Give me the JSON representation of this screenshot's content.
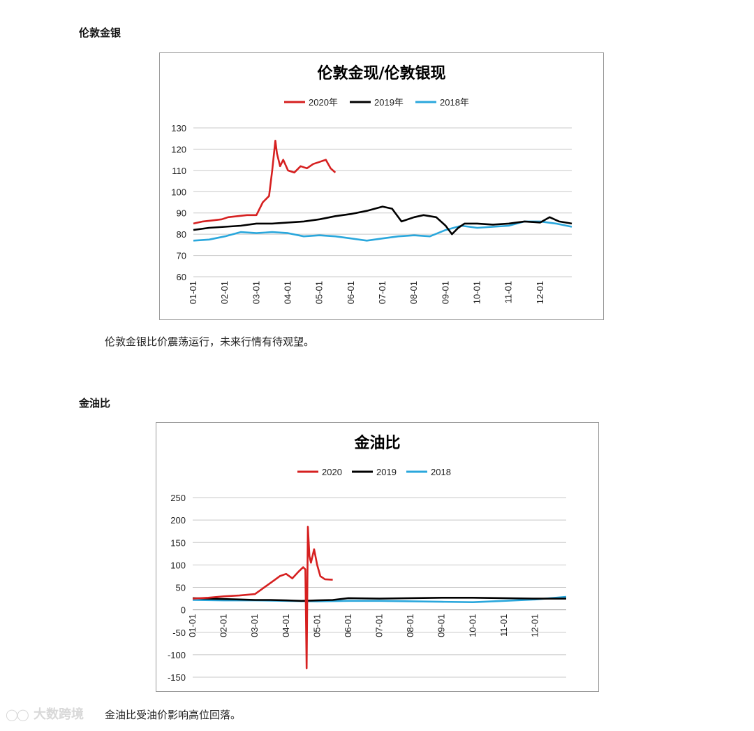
{
  "sections": [
    {
      "heading": "伦敦金银",
      "caption": "伦敦金银比价震荡运行，未来行情有待观望。"
    },
    {
      "heading": "金油比",
      "caption": "金油比受油价影响高位回落。"
    }
  ],
  "watermark": {
    "text": "大数跨境",
    "icon": "logo-icon"
  },
  "colors": {
    "s2020": "#d62020",
    "s2019": "#000000",
    "s2018": "#2aa7dc",
    "grid": "#c8c8c8"
  },
  "chart_data": [
    {
      "type": "line",
      "title": "伦敦金现/伦敦银现",
      "xlabel": "",
      "ylabel": "",
      "ylim": [
        60,
        130
      ],
      "yticks": [
        60,
        70,
        80,
        90,
        100,
        110,
        120,
        130
      ],
      "xticks": [
        "01-01",
        "02-01",
        "03-01",
        "04-01",
        "05-01",
        "06-01",
        "07-01",
        "08-01",
        "09-01",
        "10-01",
        "11-01",
        "12-01"
      ],
      "xlim_month": [
        1,
        13
      ],
      "grid": true,
      "legend_position": "top",
      "series": [
        {
          "name": "2020年",
          "color": "#d62020",
          "x": [
            1.0,
            1.3,
            1.6,
            1.9,
            2.1,
            2.4,
            2.7,
            3.0,
            3.2,
            3.4,
            3.5,
            3.6,
            3.65,
            3.75,
            3.85,
            4.0,
            4.2,
            4.4,
            4.6,
            4.8,
            5.0,
            5.2,
            5.35,
            5.5
          ],
          "y": [
            85,
            86,
            86.5,
            87,
            88,
            88.5,
            89,
            89,
            95,
            98,
            110,
            124,
            118,
            112,
            115,
            110,
            109,
            112,
            111,
            113,
            114,
            115,
            111,
            109
          ]
        },
        {
          "name": "2019年",
          "color": "#000000",
          "x": [
            1.0,
            1.5,
            2.0,
            2.5,
            3.0,
            3.5,
            4.0,
            4.5,
            5.0,
            5.5,
            6.0,
            6.5,
            7.0,
            7.3,
            7.6,
            8.0,
            8.3,
            8.7,
            9.0,
            9.2,
            9.4,
            9.6,
            10.0,
            10.5,
            11.0,
            11.5,
            12.0,
            12.3,
            12.6,
            13.0
          ],
          "y": [
            82,
            83,
            83.5,
            84,
            85,
            85,
            85.5,
            86,
            87,
            88.5,
            89.5,
            91,
            93,
            92,
            86,
            88,
            89,
            88,
            84,
            80,
            83,
            85,
            85,
            84.5,
            85,
            86,
            85.5,
            88,
            86,
            85
          ]
        },
        {
          "name": "2018年",
          "color": "#2aa7dc",
          "x": [
            1.0,
            1.5,
            2.0,
            2.5,
            3.0,
            3.5,
            4.0,
            4.5,
            5.0,
            5.5,
            6.0,
            6.5,
            7.0,
            7.5,
            8.0,
            8.5,
            9.0,
            9.5,
            10.0,
            10.5,
            11.0,
            11.5,
            12.0,
            12.5,
            13.0
          ],
          "y": [
            77,
            77.5,
            79,
            81,
            80.5,
            81,
            80.5,
            79,
            79.5,
            79,
            78,
            77,
            78,
            79,
            79.5,
            79,
            82,
            84,
            83,
            83.5,
            84,
            86,
            86,
            85,
            83.5
          ]
        }
      ]
    },
    {
      "type": "line",
      "title": "金油比",
      "xlabel": "",
      "ylabel": "",
      "ylim": [
        -150,
        250
      ],
      "yticks": [
        -150,
        -100,
        -50,
        0,
        50,
        100,
        150,
        200,
        250
      ],
      "xticks": [
        "01-01",
        "02-01",
        "03-01",
        "04-01",
        "05-01",
        "06-01",
        "07-01",
        "08-01",
        "09-01",
        "10-01",
        "11-01",
        "12-01"
      ],
      "xlim_month": [
        1,
        13
      ],
      "grid": true,
      "legend_position": "top",
      "series": [
        {
          "name": "2020",
          "color": "#d62020",
          "x": [
            1.0,
            1.5,
            2.0,
            2.5,
            3.0,
            3.2,
            3.4,
            3.6,
            3.8,
            4.0,
            4.2,
            4.4,
            4.55,
            4.62,
            4.66,
            4.7,
            4.75,
            4.8,
            4.9,
            5.0,
            5.1,
            5.25,
            5.5
          ],
          "y": [
            25,
            27,
            30,
            32,
            35,
            45,
            55,
            65,
            75,
            80,
            70,
            85,
            95,
            90,
            -130,
            185,
            120,
            105,
            135,
            100,
            75,
            68,
            67
          ]
        },
        {
          "name": "2019",
          "color": "#000000",
          "x": [
            1.0,
            1.5,
            2.0,
            2.5,
            3.0,
            3.5,
            4.0,
            4.5,
            5.0,
            5.5,
            6.0,
            7.0,
            8.0,
            9.0,
            10.0,
            11.0,
            12.0,
            13.0
          ],
          "y": [
            26,
            25,
            24,
            23,
            22,
            22,
            21,
            20,
            21,
            22,
            26,
            25,
            26,
            27,
            27,
            26,
            25,
            25
          ]
        },
        {
          "name": "2018",
          "color": "#2aa7dc",
          "x": [
            1.0,
            2.0,
            3.0,
            4.0,
            5.0,
            6.0,
            7.0,
            8.0,
            9.0,
            10.0,
            11.0,
            12.0,
            12.5,
            13.0
          ],
          "y": [
            22,
            21,
            21,
            20,
            19,
            20,
            20,
            19,
            18,
            17,
            20,
            23,
            26,
            29
          ]
        }
      ]
    }
  ]
}
